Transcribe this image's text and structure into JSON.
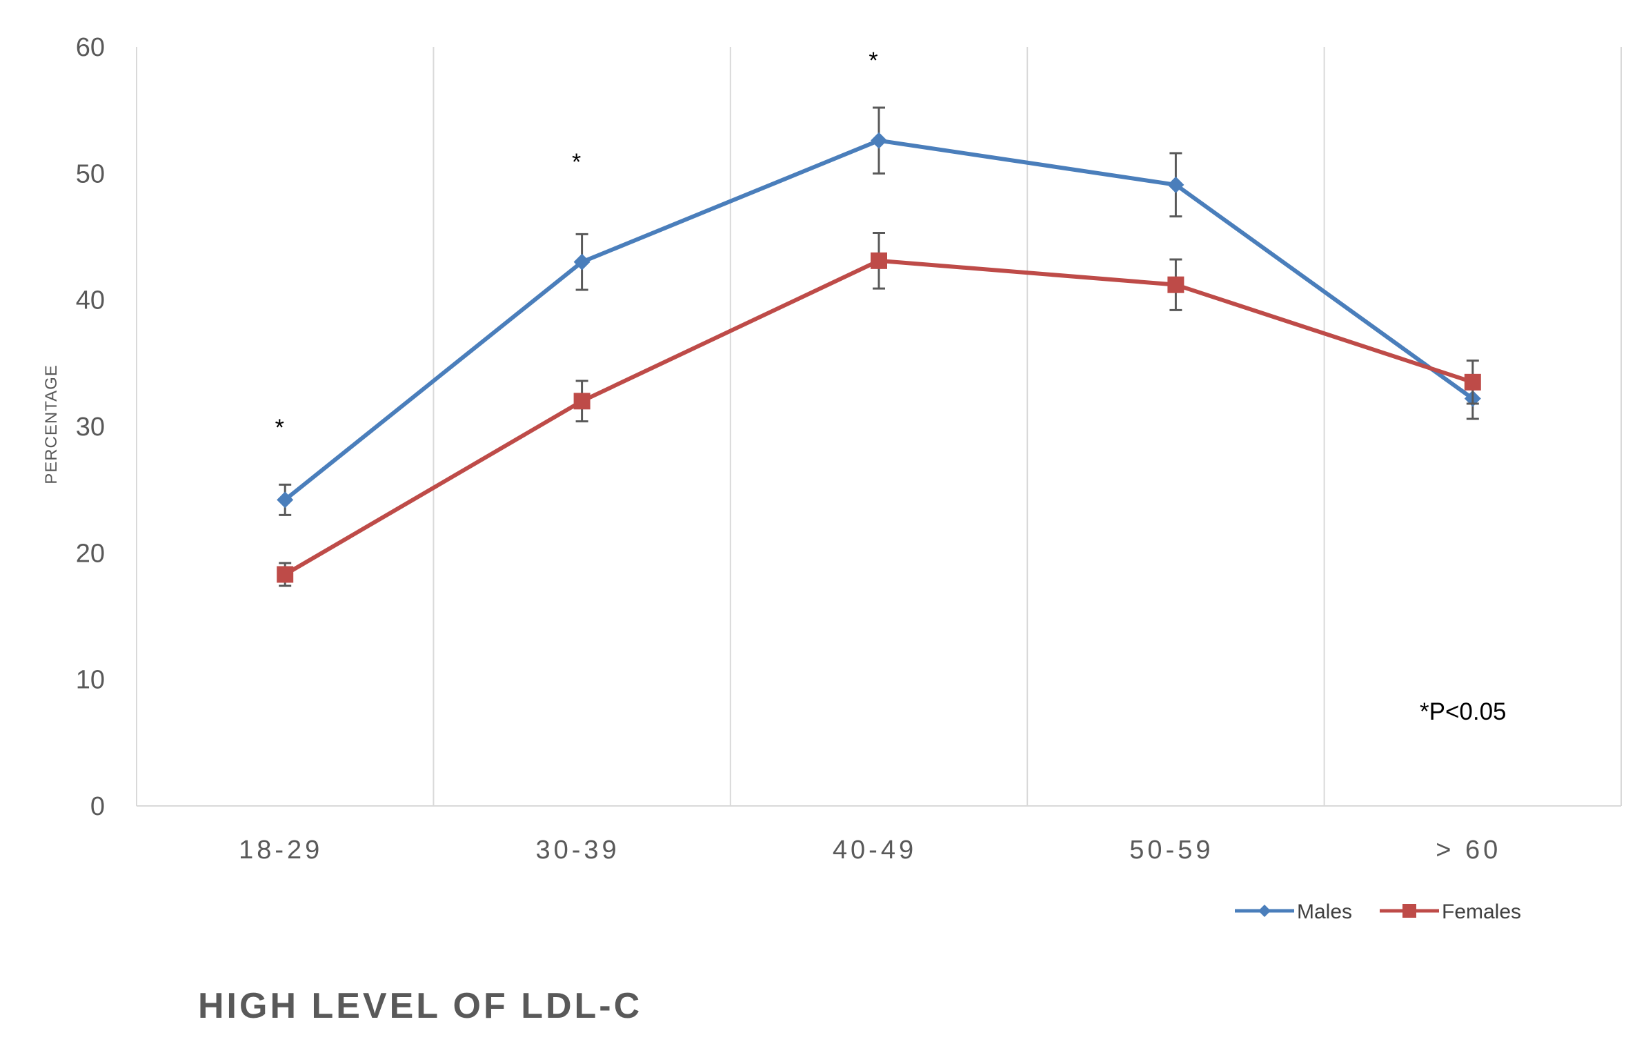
{
  "chart_data": {
    "type": "line",
    "title": "HIGH LEVEL OF LDL-C",
    "ylabel": "PERCENTAGE",
    "xlabel": "",
    "categories": [
      "18-29",
      "30-39",
      "40-49",
      "50-59",
      "> 60"
    ],
    "ylim": [
      0,
      60
    ],
    "yticks": [
      0,
      10,
      20,
      30,
      40,
      50,
      60
    ],
    "grid": "vertical",
    "legend_position": "bottom-right",
    "series": [
      {
        "name": "Males",
        "color": "#4a7ebb",
        "marker": "diamond",
        "values": [
          24.2,
          43.0,
          52.6,
          49.1,
          32.2
        ],
        "errors": [
          1.2,
          2.2,
          2.6,
          2.5,
          1.6
        ]
      },
      {
        "name": "Females",
        "color": "#be4b48",
        "marker": "square",
        "values": [
          18.3,
          32.0,
          43.1,
          41.2,
          33.5
        ],
        "errors": [
          0.9,
          1.6,
          2.2,
          2.0,
          1.7
        ]
      }
    ],
    "significance": {
      "marker": "*",
      "categories": [
        "18-29",
        "30-39",
        "40-49"
      ],
      "values": [
        30.5,
        51.5,
        59.5
      ]
    },
    "annotation": "*P<0.05"
  }
}
